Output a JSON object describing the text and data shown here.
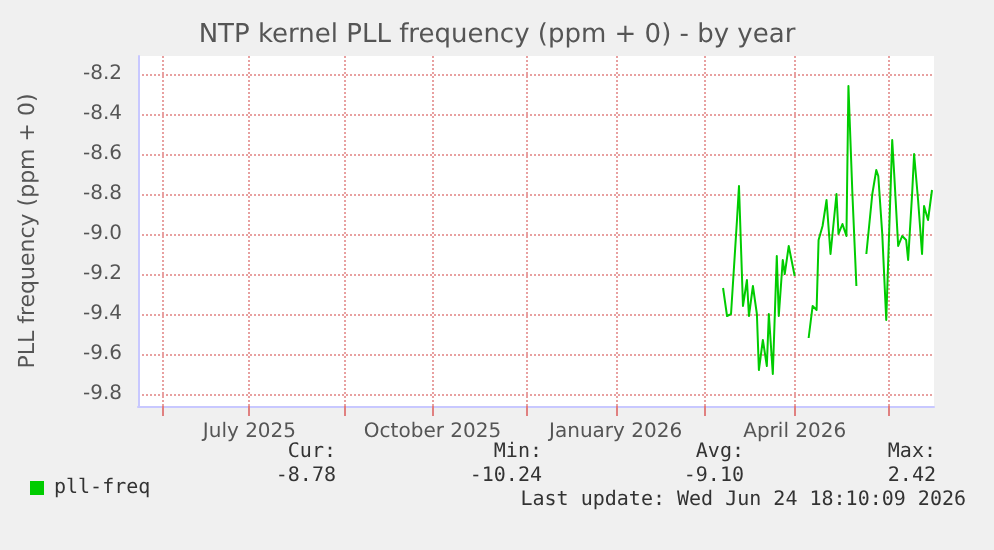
{
  "chart_data": {
    "type": "line",
    "title": "NTP kernel PLL frequency (ppm + 0) - by year",
    "ylabel": "PLL frequency (ppm + 0)",
    "x": [
      "2026-03-10",
      "2026-03-12",
      "2026-03-14",
      "2026-03-17",
      "2026-03-18",
      "2026-03-20",
      "2026-03-22",
      "2026-03-23",
      "2026-03-25",
      "2026-03-27",
      "2026-03-28",
      "2026-03-30",
      "2026-04-01",
      "2026-04-02",
      "2026-04-04",
      "2026-04-06",
      "2026-04-07",
      "2026-04-09",
      "2026-04-10",
      "2026-04-12",
      "2026-04-15",
      "2026-04-20",
      "2026-04-22",
      "2026-04-24",
      "2026-04-26",
      "2026-04-27",
      "2026-04-29",
      "2026-05-01",
      "2026-05-03",
      "2026-05-06",
      "2026-05-07",
      "2026-05-09",
      "2026-05-11",
      "2026-05-12",
      "2026-05-14",
      "2026-05-16",
      "2026-05-18",
      "2026-05-21",
      "2026-05-22",
      "2026-05-24",
      "2026-05-26",
      "2026-05-27",
      "2026-05-29",
      "2026-05-31",
      "2026-06-01",
      "2026-06-03",
      "2026-06-04",
      "2026-06-06",
      "2026-06-08",
      "2026-06-10",
      "2026-06-11",
      "2026-06-13",
      "2026-06-14",
      "2026-06-16",
      "2026-06-18",
      "2026-06-19",
      "2026-06-21",
      "2026-06-23"
    ],
    "series": [
      {
        "name": "pll-freq",
        "color": "#00cc00",
        "values": [
          -9.27,
          -9.41,
          -9.4,
          -8.93,
          -8.76,
          -9.36,
          -9.23,
          -9.41,
          -9.26,
          -9.4,
          -9.68,
          -9.53,
          -9.66,
          -9.4,
          -9.7,
          -9.11,
          -9.41,
          -9.13,
          -9.2,
          -9.06,
          -9.21,
          null,
          -9.52,
          -9.36,
          -9.38,
          -9.03,
          -8.96,
          -8.83,
          -9.1,
          -8.8,
          -9.0,
          -8.95,
          -9.01,
          -8.26,
          -8.8,
          -9.26,
          null,
          -9.1,
          -9.0,
          -8.8,
          -8.68,
          -8.71,
          -9.0,
          -9.43,
          -9.13,
          -8.53,
          -8.7,
          -9.06,
          -9.01,
          -9.03,
          -9.13,
          -8.8,
          -8.6,
          -8.83,
          -9.1,
          -8.86,
          -8.93,
          -8.78
        ]
      }
    ],
    "xlim": [
      "2025-05-20",
      "2026-06-24"
    ],
    "xticks": [
      {
        "value": "2025-06-01",
        "label": null
      },
      {
        "value": "2025-07-15",
        "label": "July 2025"
      },
      {
        "value": "2025-09-01",
        "label": null
      },
      {
        "value": "2025-10-15",
        "label": "October 2025"
      },
      {
        "value": "2025-12-01",
        "label": null
      },
      {
        "value": "2026-01-15",
        "label": "January 2026"
      },
      {
        "value": "2026-03-01",
        "label": null
      },
      {
        "value": "2026-04-15",
        "label": "April 2026"
      },
      {
        "value": "2026-06-01",
        "label": null
      }
    ],
    "ylim": [
      -9.86,
      -8.11
    ],
    "yticks": [
      -9.8,
      -9.6,
      -9.4,
      -9.2,
      {
        "value": -9.0,
        "label": "-9.0"
      },
      -8.8,
      -8.6,
      -8.4,
      -8.2
    ],
    "grid": true,
    "legend": "bottom left",
    "marker": "none",
    "line_style": "solid",
    "annotations": [
      "Cur:",
      "Min:",
      "Avg:",
      "Max:",
      "-8.78",
      "-10.24",
      "-9.10",
      "2.42",
      "Last update: Wed Jun 24 18:10:09 2026"
    ]
  }
}
